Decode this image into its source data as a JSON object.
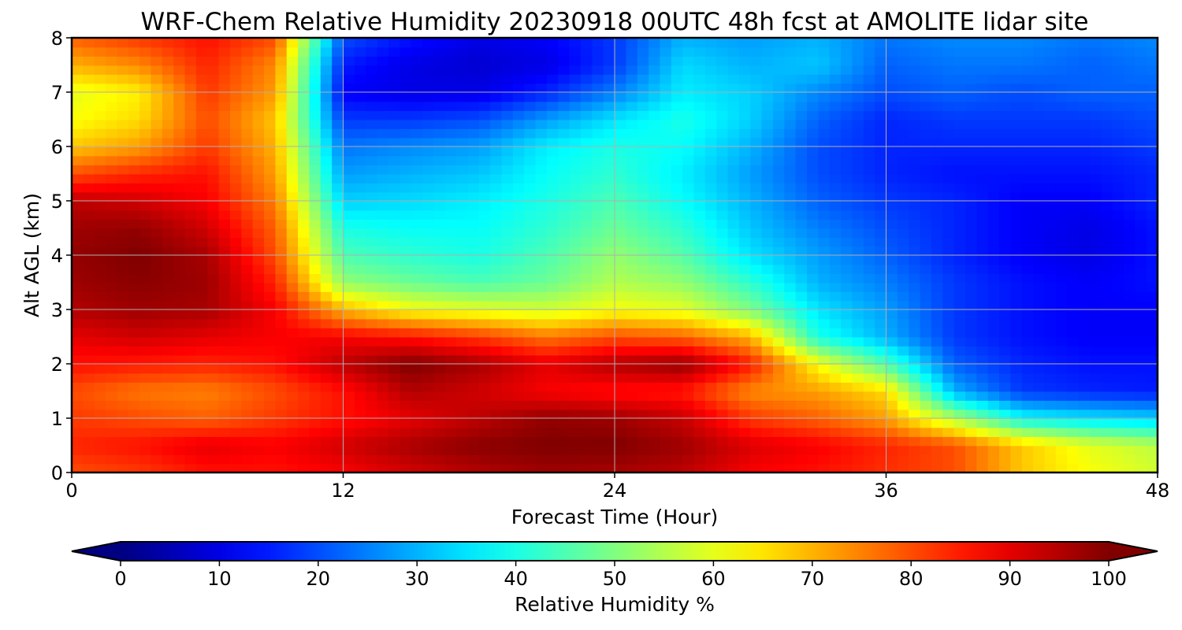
{
  "chart_data": {
    "type": "heatmap",
    "title": "WRF-Chem Relative Humidity 20230918 00UTC 48h fcst at AMOLITE lidar site",
    "xlabel": "Forecast Time (Hour)",
    "ylabel": "Alt AGL (km)",
    "xlim": [
      0,
      48
    ],
    "ylim": [
      0,
      8
    ],
    "x_ticks": [
      "0",
      "12",
      "24",
      "36",
      "48"
    ],
    "y_ticks": [
      "0",
      "1",
      "2",
      "3",
      "4",
      "5",
      "6",
      "7",
      "8"
    ],
    "grid": true,
    "colormap": "jet",
    "x": [
      0,
      3,
      6,
      9,
      12,
      15,
      18,
      21,
      24,
      27,
      30,
      33,
      36,
      39,
      42,
      45,
      48
    ],
    "y": [
      0,
      0.5,
      1,
      1.5,
      2,
      2.5,
      3,
      3.5,
      4,
      4.5,
      5,
      5.5,
      6,
      6.5,
      7,
      7.5,
      8
    ],
    "z": [
      [
        80,
        82,
        86,
        86,
        88,
        92,
        95,
        97,
        96,
        94,
        88,
        86,
        83,
        80,
        68,
        62,
        58
      ],
      [
        84,
        86,
        90,
        88,
        92,
        96,
        99,
        100,
        100,
        97,
        91,
        88,
        84,
        80,
        68,
        60,
        56
      ],
      [
        82,
        80,
        78,
        82,
        86,
        90,
        94,
        98,
        97,
        93,
        82,
        78,
        72,
        55,
        38,
        35,
        33
      ],
      [
        80,
        76,
        75,
        80,
        86,
        95,
        92,
        88,
        86,
        85,
        74,
        72,
        66,
        30,
        18,
        16,
        15
      ],
      [
        86,
        85,
        84,
        86,
        94,
        100,
        96,
        90,
        95,
        98,
        85,
        62,
        45,
        22,
        16,
        14,
        14
      ],
      [
        90,
        92,
        90,
        88,
        88,
        86,
        82,
        76,
        80,
        78,
        70,
        40,
        30,
        18,
        14,
        12,
        12
      ],
      [
        95,
        97,
        96,
        88,
        70,
        62,
        60,
        58,
        62,
        60,
        50,
        35,
        28,
        18,
        14,
        12,
        12
      ],
      [
        97,
        99,
        97,
        84,
        52,
        48,
        45,
        48,
        55,
        52,
        42,
        30,
        25,
        18,
        14,
        12,
        14
      ],
      [
        98,
        100,
        96,
        80,
        45,
        42,
        40,
        45,
        52,
        46,
        35,
        28,
        22,
        16,
        12,
        10,
        14
      ],
      [
        97,
        98,
        92,
        78,
        40,
        38,
        38,
        42,
        48,
        42,
        32,
        25,
        20,
        16,
        12,
        10,
        14
      ],
      [
        94,
        92,
        88,
        75,
        33,
        34,
        36,
        40,
        45,
        38,
        30,
        22,
        18,
        16,
        12,
        12,
        16
      ],
      [
        80,
        84,
        86,
        72,
        28,
        30,
        32,
        38,
        42,
        36,
        28,
        20,
        16,
        14,
        14,
        14,
        16
      ],
      [
        68,
        72,
        82,
        70,
        24,
        26,
        28,
        36,
        40,
        38,
        30,
        20,
        16,
        16,
        16,
        16,
        18
      ],
      [
        62,
        66,
        80,
        68,
        18,
        18,
        20,
        28,
        35,
        40,
        33,
        22,
        16,
        18,
        18,
        18,
        20
      ],
      [
        60,
        64,
        82,
        72,
        12,
        10,
        10,
        16,
        25,
        36,
        33,
        26,
        20,
        22,
        20,
        22,
        22
      ],
      [
        70,
        74,
        84,
        74,
        15,
        10,
        8,
        10,
        18,
        34,
        30,
        32,
        22,
        24,
        24,
        22,
        24
      ],
      [
        78,
        82,
        86,
        80,
        20,
        14,
        10,
        12,
        18,
        30,
        28,
        30,
        24,
        26,
        26,
        24,
        26
      ]
    ],
    "colorbar": {
      "label": "Relative Humidity %",
      "min": 0,
      "max": 100,
      "ticks": [
        "0",
        "10",
        "20",
        "30",
        "40",
        "50",
        "60",
        "70",
        "80",
        "90",
        "100"
      ],
      "extend": "both"
    }
  }
}
